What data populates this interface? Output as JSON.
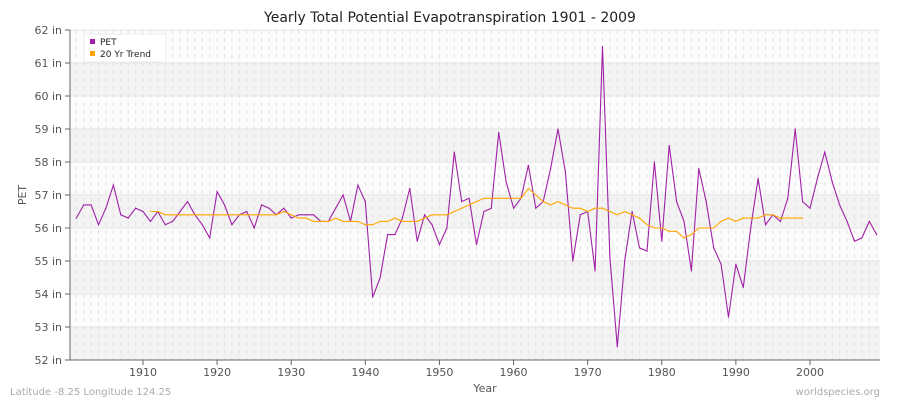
{
  "chart_data": {
    "type": "line",
    "title": "Yearly Total Potential Evapotranspiration 1901 - 2009",
    "xlabel": "Year",
    "ylabel": "PET",
    "xlim": [
      1900.2,
      2009
    ],
    "ylim": [
      52,
      62
    ],
    "y_ticks": [
      52,
      53,
      54,
      55,
      56,
      57,
      58,
      59,
      60,
      61,
      62
    ],
    "y_tick_labels": [
      "52 in",
      "53 in",
      "54 in",
      "55 in",
      "56 in",
      "57 in",
      "58 in",
      "59 in",
      "60 in",
      "61 in",
      "62 in"
    ],
    "x_ticks": [
      1910,
      1920,
      1930,
      1940,
      1950,
      1960,
      1970,
      1980,
      1990,
      2000
    ],
    "x_tick_labels": [
      "1910",
      "1920",
      "1930",
      "1940",
      "1950",
      "1960",
      "1970",
      "1980",
      "1990",
      "2000"
    ],
    "grid": true,
    "legend_position": "top-left",
    "series": [
      {
        "name": "PET",
        "color": "#a020a8",
        "x_start": 1901,
        "values": [
          56.3,
          56.7,
          56.7,
          56.1,
          56.6,
          57.3,
          56.4,
          56.3,
          56.6,
          56.5,
          56.2,
          56.5,
          56.1,
          56.2,
          56.5,
          56.8,
          56.4,
          56.1,
          55.7,
          57.1,
          56.7,
          56.1,
          56.4,
          56.5,
          56.0,
          56.7,
          56.6,
          56.4,
          56.6,
          56.3,
          56.4,
          56.4,
          56.4,
          56.2,
          56.2,
          56.6,
          57.0,
          56.2,
          57.3,
          56.8,
          53.9,
          54.5,
          55.8,
          55.8,
          56.3,
          57.2,
          55.6,
          56.4,
          56.1,
          55.5,
          56.0,
          58.3,
          56.8,
          56.9,
          55.5,
          56.5,
          56.6,
          58.9,
          57.4,
          56.6,
          56.9,
          57.9,
          56.6,
          56.8,
          57.8,
          59.0,
          57.7,
          55.0,
          56.4,
          56.5,
          54.7,
          61.5,
          55.1,
          52.4,
          55.0,
          56.5,
          55.4,
          55.3,
          58.0,
          55.6,
          58.5,
          56.8,
          56.2,
          54.7,
          57.8,
          56.8,
          55.4,
          54.9,
          53.3,
          54.9,
          54.2,
          56.0,
          57.5,
          56.1,
          56.4,
          56.2,
          56.9,
          59.0,
          56.8,
          56.6,
          57.5,
          58.3,
          57.4,
          56.7,
          56.2,
          55.6,
          55.7,
          56.2,
          55.8
        ]
      },
      {
        "name": "20 Yr Trend",
        "color": "#ffa500",
        "x_start": 1911,
        "values": [
          56.5,
          56.5,
          56.4,
          56.4,
          56.4,
          56.4,
          56.4,
          56.4,
          56.4,
          56.4,
          56.4,
          56.4,
          56.4,
          56.4,
          56.4,
          56.4,
          56.4,
          56.4,
          56.5,
          56.4,
          56.3,
          56.3,
          56.2,
          56.2,
          56.2,
          56.3,
          56.2,
          56.2,
          56.2,
          56.1,
          56.1,
          56.2,
          56.2,
          56.3,
          56.2,
          56.2,
          56.2,
          56.3,
          56.4,
          56.4,
          56.4,
          56.5,
          56.6,
          56.7,
          56.8,
          56.9,
          56.9,
          56.9,
          56.9,
          56.9,
          56.9,
          57.2,
          57.0,
          56.8,
          56.7,
          56.8,
          56.7,
          56.6,
          56.6,
          56.5,
          56.6,
          56.6,
          56.5,
          56.4,
          56.5,
          56.4,
          56.3,
          56.1,
          56.0,
          56.0,
          55.9,
          55.9,
          55.7,
          55.8,
          56.0,
          56.0,
          56.0,
          56.2,
          56.3,
          56.2,
          56.3,
          56.3,
          56.3,
          56.4,
          56.4,
          56.3,
          56.3,
          56.3,
          56.3
        ]
      }
    ]
  },
  "footer": {
    "location": "Latitude -8.25 Longitude 124.25",
    "site": "worldspecies.org"
  }
}
